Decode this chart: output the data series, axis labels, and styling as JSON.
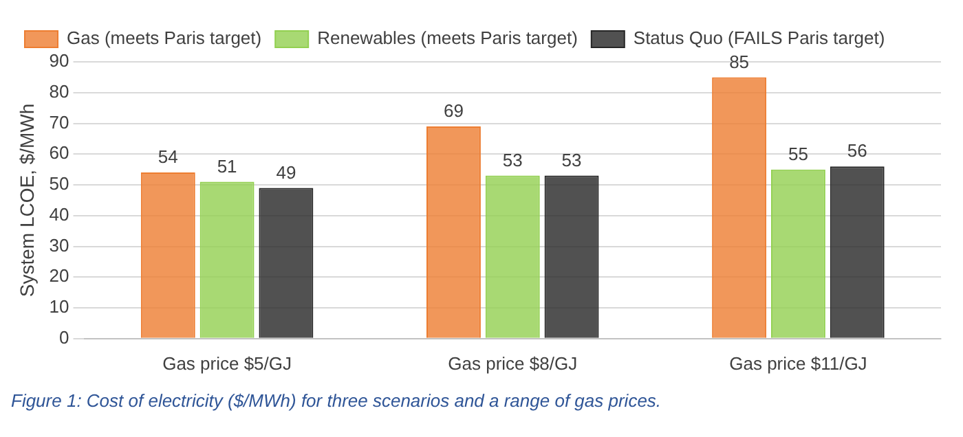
{
  "chart_data": {
    "type": "bar",
    "ylabel": "System LCOE, $/MWh",
    "categories": [
      "Gas price $5/GJ",
      "Gas price $8/GJ",
      "Gas price $11/GJ"
    ],
    "series": [
      {
        "name": "Gas (meets Paris target)",
        "color": "#ed7d31",
        "values": [
          54,
          69,
          85
        ]
      },
      {
        "name": "Renewables (meets Paris target)",
        "color": "#92d050",
        "values": [
          51,
          53,
          55
        ]
      },
      {
        "name": "Status Quo (FAILS Paris target)",
        "color": "#262626",
        "values": [
          49,
          53,
          56
        ]
      }
    ],
    "ylim": [
      0,
      90
    ],
    "yticks": [
      0,
      10,
      20,
      30,
      40,
      50,
      60,
      70,
      80,
      90
    ],
    "grid": "y",
    "legend": "top left",
    "data_labels": true,
    "annotations": [
      "Figure 1: Cost of electricity ($/MWh) for three scenarios and a range of gas prices."
    ]
  }
}
